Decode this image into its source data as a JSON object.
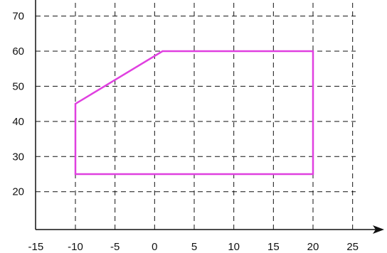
{
  "chart_data": {
    "type": "line",
    "title": "",
    "xlabel": "",
    "ylabel": "",
    "xlim": [
      -15,
      25
    ],
    "ylim": [
      12,
      75
    ],
    "x_ticks": [
      -15,
      -10,
      -5,
      0,
      5,
      10,
      15,
      20,
      25
    ],
    "y_ticks": [
      20,
      30,
      40,
      50,
      60,
      70
    ],
    "grid": true,
    "grid_style": "dashed",
    "x_axis_arrow": true,
    "series": [
      {
        "closed": true,
        "color": "#e040e0",
        "points": [
          {
            "x": -10,
            "y": 25
          },
          {
            "x": 20,
            "y": 25
          },
          {
            "x": 20,
            "y": 60
          },
          {
            "x": 1,
            "y": 60
          },
          {
            "x": -10,
            "y": 45
          }
        ]
      }
    ]
  }
}
